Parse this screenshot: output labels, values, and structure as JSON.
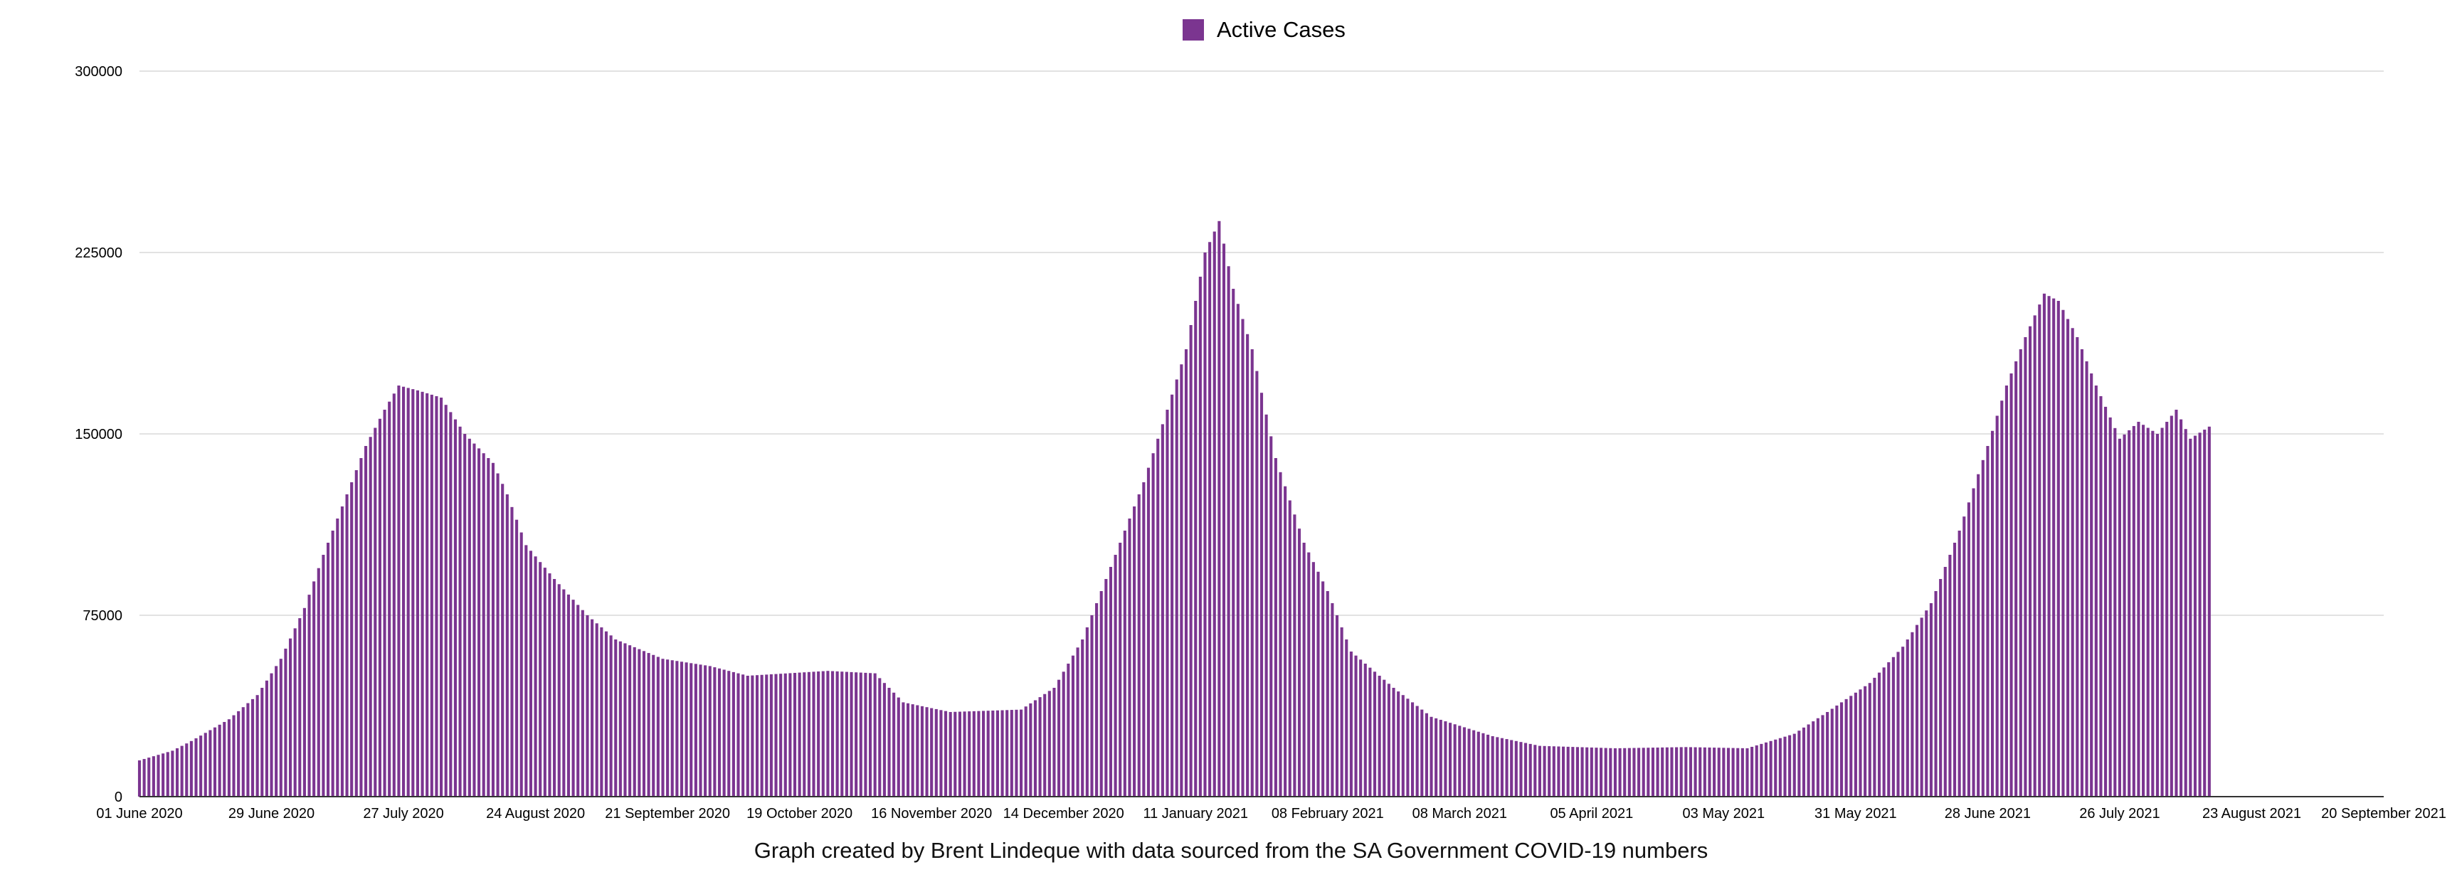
{
  "legend": {
    "label": "Active Cases",
    "color": "#7b3590"
  },
  "caption": "Graph created by Brent Lindeque with data sourced from the SA Government COVID-19 numbers",
  "chart_data": {
    "type": "bar",
    "title": "",
    "xlabel": "",
    "ylabel": "",
    "series": [
      {
        "name": "Active Cases",
        "color": "#7b3590"
      }
    ],
    "ylim": [
      0,
      300000
    ],
    "yticks": [
      "0",
      "75000",
      "150000",
      "225000",
      "300000"
    ],
    "xticks": [
      "01 June 2020",
      "29 June 2020",
      "27 July 2020",
      "24 August 2020",
      "21 September 2020",
      "19 October 2020",
      "16 November 2020",
      "14 December 2020",
      "11 January 2021",
      "08 February 2021",
      "08 March 2021",
      "05 April 2021",
      "03 May 2021",
      "31 May 2021",
      "28 June 2021",
      "26 July 2021",
      "23 August 2021",
      "20 September 2021"
    ],
    "grid": true,
    "legend_position": "top-center",
    "x_range": [
      "2020-06-01",
      "2021-09-20"
    ],
    "bar_dates_range": [
      "2020-06-01",
      "2021-08-14"
    ],
    "anchors": [
      [
        "2020-06-01",
        15000
      ],
      [
        "2020-06-08",
        19000
      ],
      [
        "2020-06-12",
        23000
      ],
      [
        "2020-06-20",
        32000
      ],
      [
        "2020-06-26",
        42000
      ],
      [
        "2020-07-01",
        57000
      ],
      [
        "2020-07-06",
        78000
      ],
      [
        "2020-07-10",
        100000
      ],
      [
        "2020-07-15",
        125000
      ],
      [
        "2020-07-19",
        145000
      ],
      [
        "2020-07-23",
        160000
      ],
      [
        "2020-07-26",
        170000
      ],
      [
        "2020-07-30",
        168000
      ],
      [
        "2020-08-04",
        165000
      ],
      [
        "2020-08-09",
        150000
      ],
      [
        "2020-08-15",
        138000
      ],
      [
        "2020-08-18",
        125000
      ],
      [
        "2020-08-22",
        104000
      ],
      [
        "2020-08-28",
        90000
      ],
      [
        "2020-09-04",
        75000
      ],
      [
        "2020-09-10",
        65000
      ],
      [
        "2020-09-20",
        57000
      ],
      [
        "2020-09-30",
        54000
      ],
      [
        "2020-10-08",
        50000
      ],
      [
        "2020-10-25",
        52000
      ],
      [
        "2020-11-04",
        51000
      ],
      [
        "2020-11-10",
        39000
      ],
      [
        "2020-11-20",
        35000
      ],
      [
        "2020-12-05",
        36000
      ],
      [
        "2020-12-12",
        45000
      ],
      [
        "2020-12-18",
        65000
      ],
      [
        "2020-12-25",
        100000
      ],
      [
        "2020-12-31",
        130000
      ],
      [
        "2021-01-05",
        160000
      ],
      [
        "2021-01-09",
        185000
      ],
      [
        "2021-01-13",
        225000
      ],
      [
        "2021-01-16",
        238000
      ],
      [
        "2021-01-19",
        210000
      ],
      [
        "2021-01-23",
        185000
      ],
      [
        "2021-01-28",
        140000
      ],
      [
        "2021-02-03",
        105000
      ],
      [
        "2021-02-08",
        85000
      ],
      [
        "2021-02-13",
        60000
      ],
      [
        "2021-02-22",
        45000
      ],
      [
        "2021-03-02",
        33000
      ],
      [
        "2021-03-15",
        25000
      ],
      [
        "2021-03-25",
        21000
      ],
      [
        "2021-04-10",
        20000
      ],
      [
        "2021-04-25",
        20500
      ],
      [
        "2021-05-08",
        20000
      ],
      [
        "2021-05-18",
        26000
      ],
      [
        "2021-05-25",
        35000
      ],
      [
        "2021-06-03",
        47000
      ],
      [
        "2021-06-10",
        62000
      ],
      [
        "2021-06-16",
        80000
      ],
      [
        "2021-06-22",
        110000
      ],
      [
        "2021-06-28",
        145000
      ],
      [
        "2021-07-02",
        170000
      ],
      [
        "2021-07-06",
        190000
      ],
      [
        "2021-07-10",
        208000
      ],
      [
        "2021-07-13",
        205000
      ],
      [
        "2021-07-17",
        190000
      ],
      [
        "2021-07-21",
        170000
      ],
      [
        "2021-07-26",
        148000
      ],
      [
        "2021-07-30",
        155000
      ],
      [
        "2021-08-03",
        150000
      ],
      [
        "2021-08-07",
        160000
      ],
      [
        "2021-08-10",
        148000
      ],
      [
        "2021-08-14",
        153000
      ]
    ]
  }
}
